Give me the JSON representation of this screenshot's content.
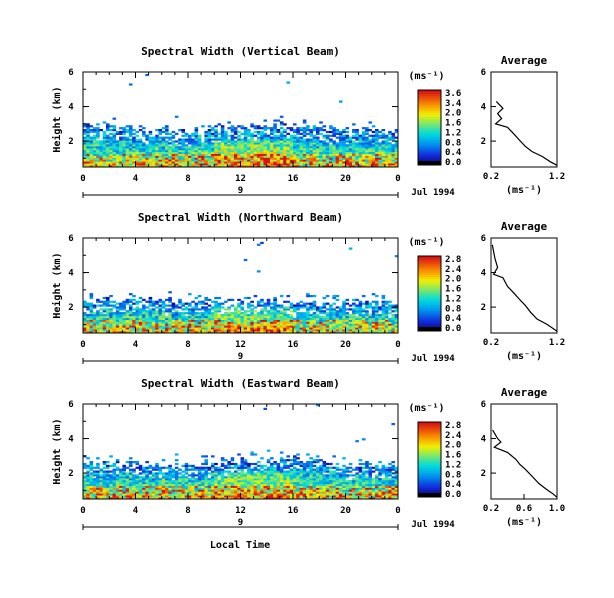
{
  "figure": {
    "bottom_xlabel": "Local Time",
    "date_label": "Jul 1994"
  },
  "chart_data": [
    {
      "type": "heatmap",
      "title": "Spectral Width (Vertical Beam)",
      "ylabel": "Height (km)",
      "xlabel": "Local Time",
      "x_ticks": [
        "0",
        "4",
        "8",
        "12",
        "16",
        "20",
        "0"
      ],
      "x_day_label": "9",
      "y_ticks": [
        "6",
        "4",
        "2"
      ],
      "xlim": [
        0,
        24
      ],
      "ylim": [
        0.5,
        6.0
      ],
      "colorbar": {
        "unit": "(ms⁻¹)",
        "ticks": [
          "3.6",
          "3.4",
          "2.0",
          "1.6",
          "1.2",
          "0.8",
          "0.4",
          "0.0"
        ]
      },
      "echo_top_km": [
        [
          0,
          2.9
        ],
        [
          4,
          2.7
        ],
        [
          8,
          2.5
        ],
        [
          12,
          2.8
        ],
        [
          16,
          2.9
        ],
        [
          20,
          2.6
        ],
        [
          24,
          2.6
        ]
      ],
      "average_profile": {
        "title": "Average",
        "xlabel": "(ms⁻¹)",
        "x_ticks": [
          "0.2",
          "1.2"
        ],
        "xlim": [
          0.2,
          1.2
        ],
        "y_ticks": [
          "6",
          "4",
          "2"
        ],
        "ylim": [
          0.5,
          6.0
        ],
        "points": [
          [
            0.28,
            4.3
          ],
          [
            0.38,
            3.9
          ],
          [
            0.3,
            3.6
          ],
          [
            0.36,
            3.3
          ],
          [
            0.27,
            3.0
          ],
          [
            0.45,
            2.8
          ],
          [
            0.55,
            2.4
          ],
          [
            0.62,
            2.1
          ],
          [
            0.72,
            1.7
          ],
          [
            0.82,
            1.4
          ],
          [
            0.98,
            1.1
          ],
          [
            1.1,
            0.8
          ],
          [
            1.2,
            0.6
          ]
        ]
      }
    },
    {
      "type": "heatmap",
      "title": "Spectral Width (Northward Beam)",
      "ylabel": "Height (km)",
      "xlabel": "Local Time",
      "x_ticks": [
        "0",
        "4",
        "8",
        "12",
        "16",
        "20",
        "0"
      ],
      "x_day_label": "9",
      "y_ticks": [
        "6",
        "4",
        "2"
      ],
      "xlim": [
        0,
        24
      ],
      "ylim": [
        0.5,
        6.0
      ],
      "colorbar": {
        "unit": "(ms⁻¹)",
        "ticks": [
          "2.8",
          "2.4",
          "2.0",
          "1.6",
          "1.2",
          "0.8",
          "0.4",
          "0.0"
        ]
      },
      "echo_top_km": [
        [
          0,
          2.3
        ],
        [
          4,
          2.4
        ],
        [
          8,
          2.2
        ],
        [
          12,
          2.3
        ],
        [
          16,
          2.2
        ],
        [
          20,
          2.3
        ],
        [
          24,
          2.2
        ]
      ],
      "average_profile": {
        "title": "Average",
        "xlabel": "(ms⁻¹)",
        "x_ticks": [
          "0.2",
          "1.2"
        ],
        "xlim": [
          0.2,
          1.2
        ],
        "y_ticks": [
          "6",
          "4",
          "2"
        ],
        "ylim": [
          0.5,
          6.0
        ],
        "points": [
          [
            0.22,
            5.6
          ],
          [
            0.26,
            4.8
          ],
          [
            0.3,
            4.3
          ],
          [
            0.24,
            3.9
          ],
          [
            0.38,
            3.7
          ],
          [
            0.45,
            3.2
          ],
          [
            0.55,
            2.8
          ],
          [
            0.62,
            2.5
          ],
          [
            0.72,
            2.1
          ],
          [
            0.8,
            1.7
          ],
          [
            0.9,
            1.3
          ],
          [
            1.05,
            1.0
          ],
          [
            1.2,
            0.6
          ]
        ]
      }
    },
    {
      "type": "heatmap",
      "title": "Spectral Width (Eastward Beam)",
      "ylabel": "Height (km)",
      "xlabel": "Local Time",
      "x_ticks": [
        "0",
        "4",
        "8",
        "12",
        "16",
        "20",
        "0"
      ],
      "x_day_label": "9",
      "y_ticks": [
        "6",
        "4",
        "2"
      ],
      "xlim": [
        0,
        24
      ],
      "ylim": [
        0.5,
        6.0
      ],
      "colorbar": {
        "unit": "(ms⁻¹)",
        "ticks": [
          "2.8",
          "2.4",
          "2.0",
          "1.6",
          "1.2",
          "0.8",
          "0.4",
          "0.0"
        ]
      },
      "echo_top_km": [
        [
          0,
          2.5
        ],
        [
          4,
          2.6
        ],
        [
          8,
          2.3
        ],
        [
          12,
          2.7
        ],
        [
          16,
          2.9
        ],
        [
          20,
          2.4
        ],
        [
          24,
          2.3
        ]
      ],
      "average_profile": {
        "title": "Average",
        "xlabel": "(ms⁻¹)",
        "x_ticks": [
          "0.2",
          "0.6",
          "1.0"
        ],
        "xlim": [
          0.2,
          1.0
        ],
        "y_ticks": [
          "6",
          "4",
          "2"
        ],
        "ylim": [
          0.5,
          6.0
        ],
        "points": [
          [
            0.22,
            4.5
          ],
          [
            0.28,
            4.0
          ],
          [
            0.32,
            3.8
          ],
          [
            0.24,
            3.5
          ],
          [
            0.4,
            3.2
          ],
          [
            0.5,
            2.8
          ],
          [
            0.55,
            2.5
          ],
          [
            0.62,
            2.2
          ],
          [
            0.7,
            1.8
          ],
          [
            0.78,
            1.4
          ],
          [
            0.86,
            1.1
          ],
          [
            0.95,
            0.8
          ],
          [
            1.0,
            0.6
          ]
        ]
      }
    }
  ]
}
